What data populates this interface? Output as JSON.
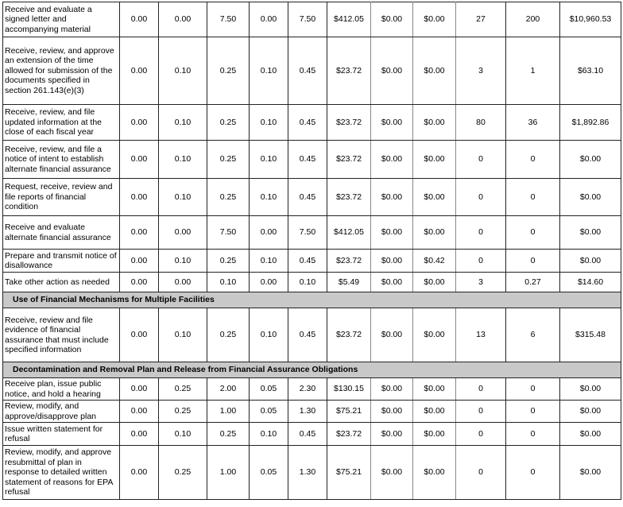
{
  "table": {
    "rows": [
      {
        "type": "data",
        "description": "Receive and evaluate a signed letter and accompanying material",
        "values": [
          "0.00",
          "0.00",
          "7.50",
          "0.00",
          "7.50",
          "$412.05",
          "$0.00",
          "$0.00",
          "27",
          "200",
          "$10,960.53"
        ]
      },
      {
        "type": "data",
        "description": "Receive, review, and approve an extension of the time allowed for submission of the documents specified in section 261.143(e)(3)",
        "values": [
          "0.00",
          "0.10",
          "0.25",
          "0.10",
          "0.45",
          "$23.72",
          "$0.00",
          "$0.00",
          "3",
          "1",
          "$63.10"
        ]
      },
      {
        "type": "data",
        "description": "Receive, review, and file updated information at the close of each fiscal year",
        "values": [
          "0.00",
          "0.10",
          "0.25",
          "0.10",
          "0.45",
          "$23.72",
          "$0.00",
          "$0.00",
          "80",
          "36",
          "$1,892.86"
        ]
      },
      {
        "type": "data",
        "description": "Receive, review, and file a notice of intent to establish alternate financial assurance",
        "values": [
          "0.00",
          "0.10",
          "0.25",
          "0.10",
          "0.45",
          "$23.72",
          "$0.00",
          "$0.00",
          "0",
          "0",
          "$0.00"
        ]
      },
      {
        "type": "data",
        "description": "Request, receive, review and file reports of financial condition",
        "values": [
          "0.00",
          "0.10",
          "0.25",
          "0.10",
          "0.45",
          "$23.72",
          "$0.00",
          "$0.00",
          "0",
          "0",
          "$0.00"
        ]
      },
      {
        "type": "data",
        "description": "Receive and evaluate alternate financial assurance",
        "values": [
          "0.00",
          "0.00",
          "7.50",
          "0.00",
          "7.50",
          "$412.05",
          "$0.00",
          "$0.00",
          "0",
          "0",
          "$0.00"
        ]
      },
      {
        "type": "data",
        "description": "Prepare and transmit notice of disallowance",
        "values": [
          "0.00",
          "0.10",
          "0.25",
          "0.10",
          "0.45",
          "$23.72",
          "$0.00",
          "$0.42",
          "0",
          "0",
          "$0.00"
        ]
      },
      {
        "type": "data",
        "description": "Take other action as needed",
        "values": [
          "0.00",
          "0.00",
          "0.10",
          "0.00",
          "0.10",
          "$5.49",
          "$0.00",
          "$0.00",
          "3",
          "0.27",
          "$14.60"
        ]
      },
      {
        "type": "section",
        "description": "Use of Financial Mechanisms for Multiple Facilities"
      },
      {
        "type": "data",
        "description": "Receive, review and file evidence of financial assurance that must include specified information",
        "values": [
          "0.00",
          "0.10",
          "0.25",
          "0.10",
          "0.45",
          "$23.72",
          "$0.00",
          "$0.00",
          "13",
          "6",
          "$315.48"
        ]
      },
      {
        "type": "section",
        "description": "Decontamination and Removal Plan and Release from Financial Assurance Obligations"
      },
      {
        "type": "data",
        "description": "Receive plan, issue public notice, and hold a hearing",
        "values": [
          "0.00",
          "0.25",
          "2.00",
          "0.05",
          "2.30",
          "$130.15",
          "$0.00",
          "$0.00",
          "0",
          "0",
          "$0.00"
        ]
      },
      {
        "type": "data",
        "description": "Review, modify, and approve/disapprove plan",
        "values": [
          "0.00",
          "0.25",
          "1.00",
          "0.05",
          "1.30",
          "$75.21",
          "$0.00",
          "$0.00",
          "0",
          "0",
          "$0.00"
        ]
      },
      {
        "type": "data",
        "description": "Issue written statement for refusal",
        "values": [
          "0.00",
          "0.10",
          "0.25",
          "0.10",
          "0.45",
          "$23.72",
          "$0.00",
          "$0.00",
          "0",
          "0",
          "$0.00"
        ]
      },
      {
        "type": "data",
        "description": "Review, modify, and approve resubmittal of plan in response to detailed written statement of reasons for EPA refusal",
        "values": [
          "0.00",
          "0.25",
          "1.00",
          "0.05",
          "1.30",
          "$75.21",
          "$0.00",
          "$0.00",
          "0",
          "0",
          "$0.00"
        ]
      }
    ]
  }
}
